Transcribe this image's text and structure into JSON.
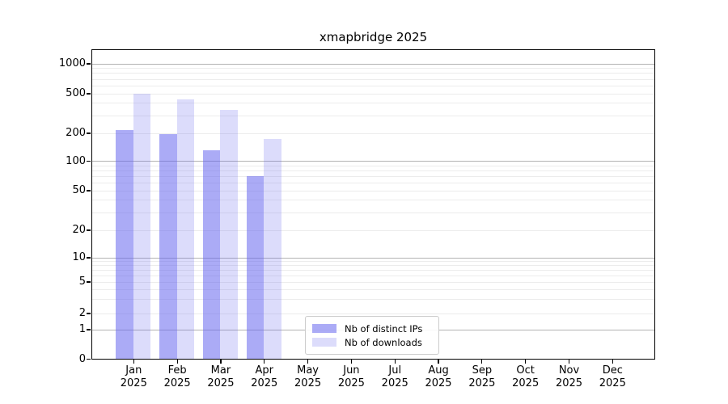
{
  "chart_data": {
    "type": "bar",
    "title": "xmapbridge 2025",
    "scale": "symlog",
    "grid": true,
    "ylim": [
      0,
      1000
    ],
    "yticks": [
      0,
      1,
      2,
      5,
      10,
      20,
      50,
      100,
      200,
      500,
      1000
    ],
    "categories": [
      {
        "month": "Jan",
        "year": "2025"
      },
      {
        "month": "Feb",
        "year": "2025"
      },
      {
        "month": "Mar",
        "year": "2025"
      },
      {
        "month": "Apr",
        "year": "2025"
      },
      {
        "month": "May",
        "year": "2025"
      },
      {
        "month": "Jun",
        "year": "2025"
      },
      {
        "month": "Jul",
        "year": "2025"
      },
      {
        "month": "Aug",
        "year": "2025"
      },
      {
        "month": "Sep",
        "year": "2025"
      },
      {
        "month": "Oct",
        "year": "2025"
      },
      {
        "month": "Nov",
        "year": "2025"
      },
      {
        "month": "Dec",
        "year": "2025"
      }
    ],
    "series": [
      {
        "name": "Nb of distinct IPs",
        "key": "distinct-ips",
        "color": "rgba(102,102,238,0.55)",
        "values": [
          215,
          195,
          130,
          70,
          null,
          null,
          null,
          null,
          null,
          null,
          null,
          null
        ]
      },
      {
        "name": "Nb of downloads",
        "key": "downloads",
        "color": "rgba(102,102,238,0.23)",
        "values": [
          500,
          435,
          340,
          172,
          null,
          null,
          null,
          null,
          null,
          null,
          null,
          null
        ]
      }
    ],
    "legend": {
      "position": "lower-center",
      "entries": [
        "Nb of distinct IPs",
        "Nb of downloads"
      ]
    }
  }
}
